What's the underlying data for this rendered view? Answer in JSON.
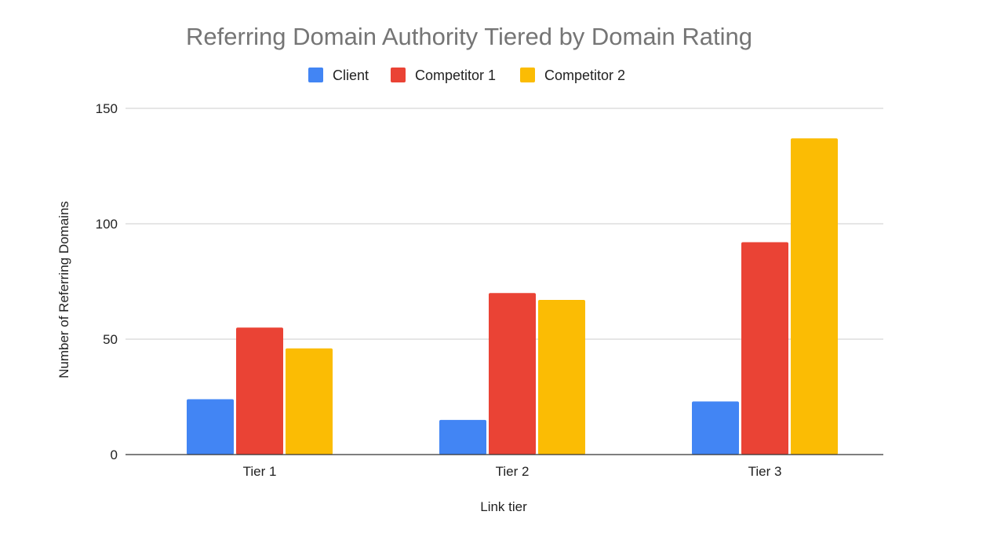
{
  "chart_data": {
    "type": "bar",
    "title": "Referring Domain Authority Tiered by Domain Rating",
    "xlabel": "Link tier",
    "ylabel": "Number of Referring Domains",
    "categories": [
      "Tier 1",
      "Tier 2",
      "Tier 3"
    ],
    "series": [
      {
        "name": "Client",
        "values": [
          24,
          15,
          23
        ],
        "color": "#4285F4"
      },
      {
        "name": "Competitor 1",
        "values": [
          55,
          70,
          92
        ],
        "color": "#EA4335"
      },
      {
        "name": "Competitor 2",
        "values": [
          46,
          67,
          137
        ],
        "color": "#FBBC04"
      }
    ],
    "ylim": [
      0,
      150
    ],
    "yticks": [
      0,
      50,
      100,
      150
    ],
    "grid": true,
    "legend_position": "top"
  }
}
